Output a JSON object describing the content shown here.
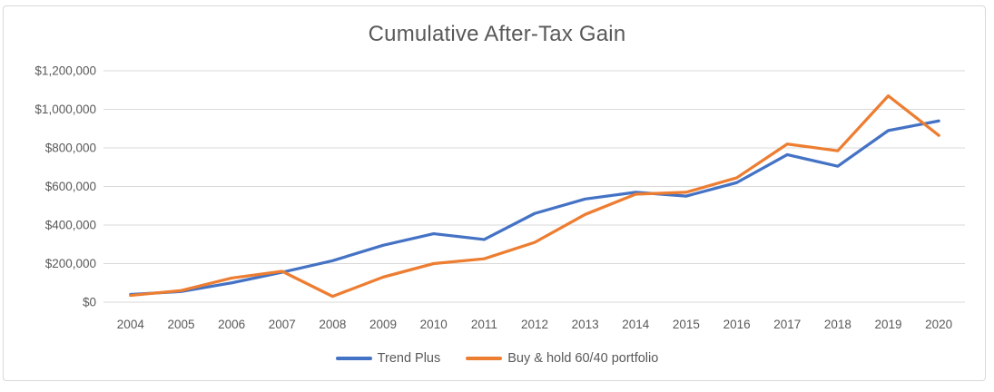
{
  "chart_data": {
    "type": "line",
    "title": "Cumulative After-Tax Gain",
    "categories": [
      "2004",
      "2005",
      "2006",
      "2007",
      "2008",
      "2009",
      "2010",
      "2011",
      "2012",
      "2013",
      "2014",
      "2015",
      "2016",
      "2017",
      "2018",
      "2019",
      "2020"
    ],
    "series": [
      {
        "name": "Trend Plus",
        "color": "#4472C4",
        "values": [
          40000,
          55000,
          100000,
          155000,
          215000,
          295000,
          355000,
          325000,
          460000,
          535000,
          570000,
          550000,
          620000,
          765000,
          705000,
          890000,
          940000
        ]
      },
      {
        "name": "Buy & hold 60/40 portfolio",
        "color": "#ED7D31",
        "values": [
          35000,
          60000,
          125000,
          160000,
          30000,
          130000,
          200000,
          225000,
          310000,
          455000,
          560000,
          570000,
          645000,
          820000,
          785000,
          1070000,
          865000
        ]
      }
    ],
    "y_axis": {
      "min": 0,
      "max": 1200000,
      "tick_step": 200000,
      "tick_values": [
        0,
        200000,
        400000,
        600000,
        800000,
        1000000,
        1200000
      ],
      "tick_labels": [
        "$0",
        "$200,000",
        "$400,000",
        "$600,000",
        "$800,000",
        "$1,000,000",
        "$1,200,000"
      ]
    },
    "xlabel": "",
    "ylabel": "",
    "grid": true,
    "legend_position": "bottom",
    "styles": {
      "text_color": "#595959",
      "gridline_color": "#D9D9D9",
      "frame_border_color": "#D9D9D9",
      "line_width": 3.25
    }
  }
}
